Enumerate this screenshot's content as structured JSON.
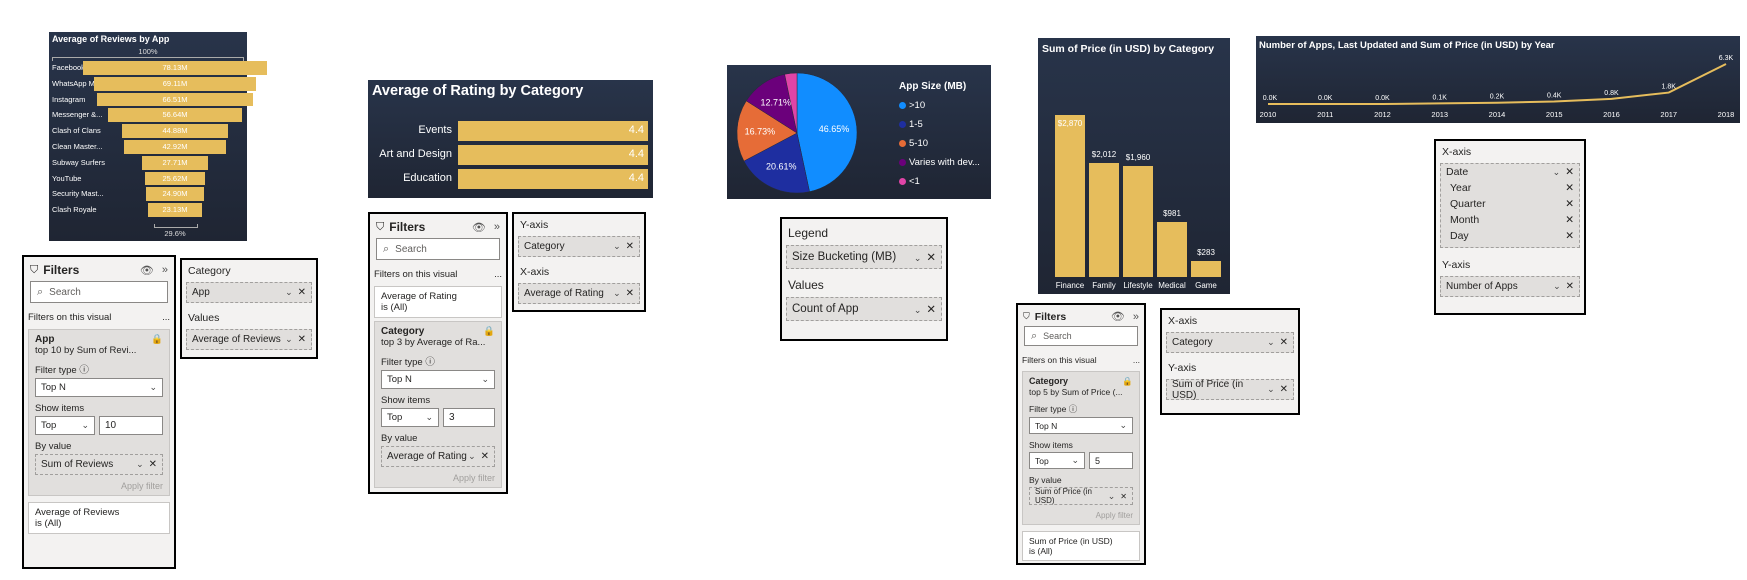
{
  "funnel": {
    "title": "Average of Reviews by App",
    "top_pct": "100%",
    "bottom_pct": "29.6%",
    "bar_color": "#e6bd5c",
    "items": [
      {
        "label": "Facebook",
        "value_label": "78.13M",
        "value": 78.13
      },
      {
        "label": "WhatsApp M...",
        "value_label": "69.11M",
        "value": 69.11
      },
      {
        "label": "Instagram",
        "value_label": "66.51M",
        "value": 66.51
      },
      {
        "label": "Messenger &...",
        "value_label": "56.64M",
        "value": 56.64
      },
      {
        "label": "Clash of Clans",
        "value_label": "44.88M",
        "value": 44.88
      },
      {
        "label": "Clean Master...",
        "value_label": "42.92M",
        "value": 42.92
      },
      {
        "label": "Subway Surfers",
        "value_label": "27.71M",
        "value": 27.71
      },
      {
        "label": "YouTube",
        "value_label": "25.62M",
        "value": 25.62
      },
      {
        "label": "Security Mast...",
        "value_label": "24.90M",
        "value": 24.9
      },
      {
        "label": "Clash Royale",
        "value_label": "23.13M",
        "value": 23.13
      }
    ]
  },
  "filters1": {
    "title": "Filters",
    "search_placeholder": "Search",
    "section": "Filters on this visual",
    "more": "...",
    "card_title": "App",
    "card_sub": "top 10 by Sum of Revi...",
    "filter_type_label": "Filter type",
    "filter_type": "Top N",
    "show_items_label": "Show items",
    "show_dir": "Top",
    "show_count": "10",
    "by_value_label": "By value",
    "by_value": "Sum of Reviews",
    "apply": "Apply filter",
    "card2_line1": "Average of Reviews",
    "card2_line2": "is (All)"
  },
  "fields1": {
    "label1": "Category",
    "field1": "App",
    "label2": "Values",
    "field2": "Average of Reviews"
  },
  "rating": {
    "title": "Average of Rating by Category",
    "bar_color": "#e6bd5c",
    "items": [
      {
        "label": "Events",
        "value_label": "4.4",
        "value": 4.4
      },
      {
        "label": "Art and Design",
        "value_label": "4.4",
        "value": 4.4
      },
      {
        "label": "Education",
        "value_label": "4.4",
        "value": 4.4
      }
    ]
  },
  "filters2": {
    "title": "Filters",
    "search_placeholder": "Search",
    "section": "Filters on this visual",
    "more": "...",
    "card1_line1": "Average of Rating",
    "card1_line2": "is (All)",
    "card_title": "Category",
    "card_sub": "top 3 by Average of Ra...",
    "filter_type_label": "Filter type",
    "filter_type": "Top N",
    "show_items_label": "Show items",
    "show_dir": "Top",
    "show_count": "3",
    "by_value_label": "By value",
    "by_value": "Average of Rating",
    "apply": "Apply filter"
  },
  "fields2": {
    "label1": "Y-axis",
    "field1": "Category",
    "label2": "X-axis",
    "field2": "Average of Rating"
  },
  "pie": {
    "legend_title": "App Size (MB)",
    "slices": [
      {
        "label": ">10",
        "value": 46.65,
        "value_label": "46.65%",
        "color": "#118dff"
      },
      {
        "label": "1-5",
        "value": 20.61,
        "value_label": "20.61%",
        "color": "#1e2ea0"
      },
      {
        "label": "5-10",
        "value": 16.73,
        "value_label": "16.73%",
        "color": "#e66c37"
      },
      {
        "label": "Varies with dev...",
        "value": 12.71,
        "value_label": "12.71%",
        "color": "#6b007b"
      },
      {
        "label": "<1",
        "value": 3.3,
        "value_label": "",
        "color": "#e044a7"
      }
    ]
  },
  "fields3": {
    "label1": "Legend",
    "field1": "Size Bucketing (MB)",
    "label2": "Values",
    "field2": "Count of App"
  },
  "price": {
    "title": "Sum of Price (in USD) by Category",
    "bar_color": "#e6bd5c",
    "items": [
      {
        "label": "Finance",
        "value_label": "$2,870",
        "value": 2870
      },
      {
        "label": "Family",
        "value_label": "$2,012",
        "value": 2012
      },
      {
        "label": "Lifestyle",
        "value_label": "$1,960",
        "value": 1960
      },
      {
        "label": "Medical",
        "value_label": "$981",
        "value": 981
      },
      {
        "label": "Game",
        "value_label": "$283",
        "value": 283
      }
    ]
  },
  "filters3": {
    "title": "Filters",
    "search_placeholder": "Search",
    "section": "Filters on this visual",
    "more": "...",
    "card_title": "Category",
    "card_sub": "top 5 by Sum of Price (...",
    "filter_type_label": "Filter type",
    "filter_type": "Top N",
    "show_items_label": "Show items",
    "show_dir": "Top",
    "show_count": "5",
    "by_value_label": "By value",
    "by_value": "Sum of Price (in USD)",
    "apply": "Apply filter",
    "card2_line1": "Sum of Price (in USD)",
    "card2_line2": "is (All)"
  },
  "fields4": {
    "label1": "X-axis",
    "field1": "Category",
    "label2": "Y-axis",
    "field2": "Sum of Price (in USD)"
  },
  "line": {
    "title": "Number of Apps, Last Updated and Sum of Price (in USD) by Year",
    "line_color": "#e6bd5c",
    "points": [
      {
        "year": "2010",
        "value": 0.0,
        "value_label": "0.0K"
      },
      {
        "year": "2011",
        "value": 0.0,
        "value_label": "0.0K"
      },
      {
        "year": "2012",
        "value": 0.0,
        "value_label": "0.0K"
      },
      {
        "year": "2013",
        "value": 0.1,
        "value_label": "0.1K"
      },
      {
        "year": "2014",
        "value": 0.2,
        "value_label": "0.2K"
      },
      {
        "year": "2015",
        "value": 0.4,
        "value_label": "0.4K"
      },
      {
        "year": "2016",
        "value": 0.8,
        "value_label": "0.8K"
      },
      {
        "year": "2017",
        "value": 1.8,
        "value_label": "1.8K"
      },
      {
        "year": "2018",
        "value": 6.3,
        "value_label": "6.3K"
      }
    ]
  },
  "fields5": {
    "label1": "X-axis",
    "date_field": "Date",
    "hierarchy": [
      "Year",
      "Quarter",
      "Month",
      "Day"
    ],
    "label2": "Y-axis",
    "field2": "Number of Apps"
  },
  "chart_data": [
    {
      "type": "bar",
      "title": "Average of Reviews by App",
      "categories": [
        "Facebook",
        "WhatsApp M...",
        "Instagram",
        "Messenger &...",
        "Clash of Clans",
        "Clean Master...",
        "Subway Surfers",
        "YouTube",
        "Security Mast...",
        "Clash Royale"
      ],
      "values": [
        78.13,
        69.11,
        66.51,
        56.64,
        44.88,
        42.92,
        27.71,
        25.62,
        24.9,
        23.13
      ]
    },
    {
      "type": "bar",
      "title": "Average of Rating by Category",
      "categories": [
        "Events",
        "Art and Design",
        "Education"
      ],
      "values": [
        4.4,
        4.4,
        4.4
      ]
    },
    {
      "type": "pie",
      "categories": [
        ">10",
        "1-5",
        "5-10",
        "Varies with dev...",
        "<1"
      ],
      "values": [
        46.65,
        20.61,
        16.73,
        12.71,
        3.3
      ]
    },
    {
      "type": "bar",
      "title": "Sum of Price (in USD) by Category",
      "categories": [
        "Finance",
        "Family",
        "Lifestyle",
        "Medical",
        "Game"
      ],
      "values": [
        2870,
        2012,
        1960,
        981,
        283
      ]
    },
    {
      "type": "line",
      "title": "Number of Apps, Last Updated and Sum of Price (in USD) by Year",
      "x": [
        "2010",
        "2011",
        "2012",
        "2013",
        "2014",
        "2015",
        "2016",
        "2017",
        "2018"
      ],
      "values": [
        0.0,
        0.0,
        0.0,
        0.1,
        0.2,
        0.4,
        0.8,
        1.8,
        6.3
      ]
    }
  ]
}
